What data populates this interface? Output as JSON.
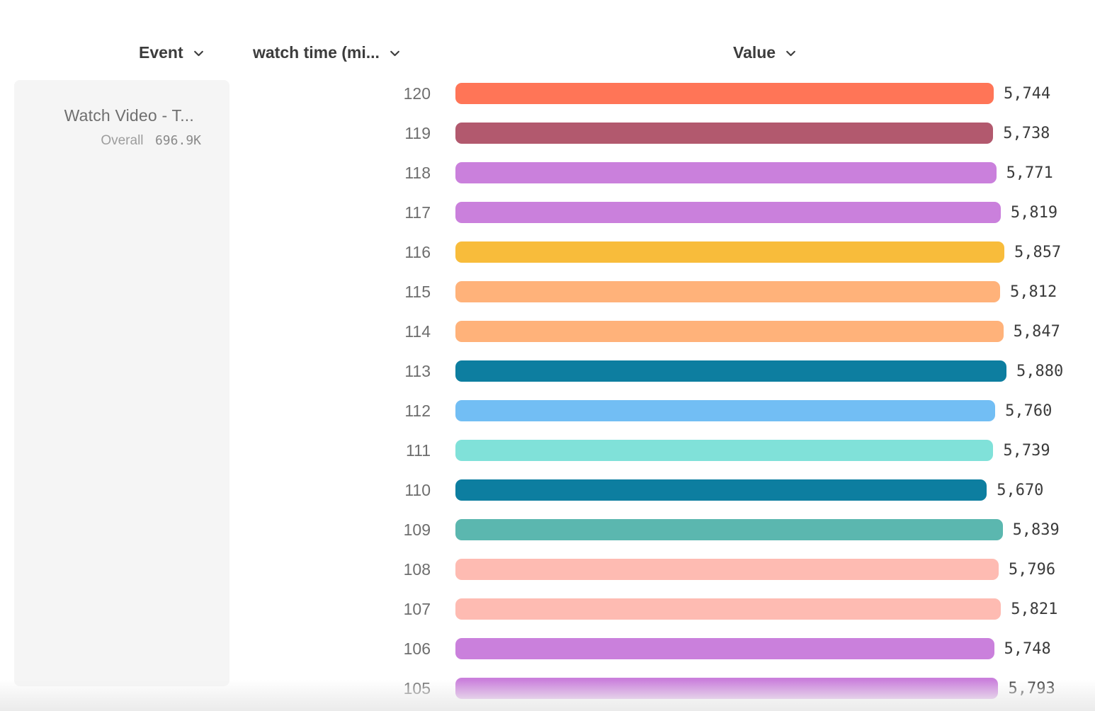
{
  "header": {
    "columns": [
      {
        "id": "event",
        "label": "Event"
      },
      {
        "id": "breakdown",
        "label": "watch time (mi..."
      },
      {
        "id": "value",
        "label": "Value"
      }
    ]
  },
  "event_card": {
    "title": "Watch Video - T...",
    "overall_label": "Overall",
    "overall_value": "696.9K"
  },
  "chart_data": {
    "type": "bar",
    "orientation": "horizontal",
    "title": "",
    "xlabel": "Value",
    "ylabel": "watch time (mi...)",
    "xlim": [
      0,
      5880
    ],
    "grid": false,
    "legend": false,
    "categories": [
      "120",
      "119",
      "118",
      "117",
      "116",
      "115",
      "114",
      "113",
      "112",
      "111",
      "110",
      "109",
      "108",
      "107",
      "106",
      "105"
    ],
    "values": [
      5744,
      5738,
      5771,
      5819,
      5857,
      5812,
      5847,
      5880,
      5760,
      5739,
      5670,
      5839,
      5796,
      5821,
      5748,
      5793
    ],
    "value_labels": [
      "5,744",
      "5,738",
      "5,771",
      "5,819",
      "5,857",
      "5,812",
      "5,847",
      "5,880",
      "5,760",
      "5,739",
      "5,670",
      "5,839",
      "5,796",
      "5,821",
      "5,748",
      "5,793"
    ],
    "colors": [
      "#FF7557",
      "#B2596E",
      "#CA80DC",
      "#CA80DC",
      "#F8BC3B",
      "#FFB27A",
      "#FFB27A",
      "#0D7EA0",
      "#72BEF4",
      "#80E1D9",
      "#0D7EA0",
      "#5BB7AF",
      "#FEBBB2",
      "#FEBBB2",
      "#CA80DC",
      "#CA80DC"
    ],
    "icons": {
      "column_sort": "chevron-down-icon"
    }
  }
}
